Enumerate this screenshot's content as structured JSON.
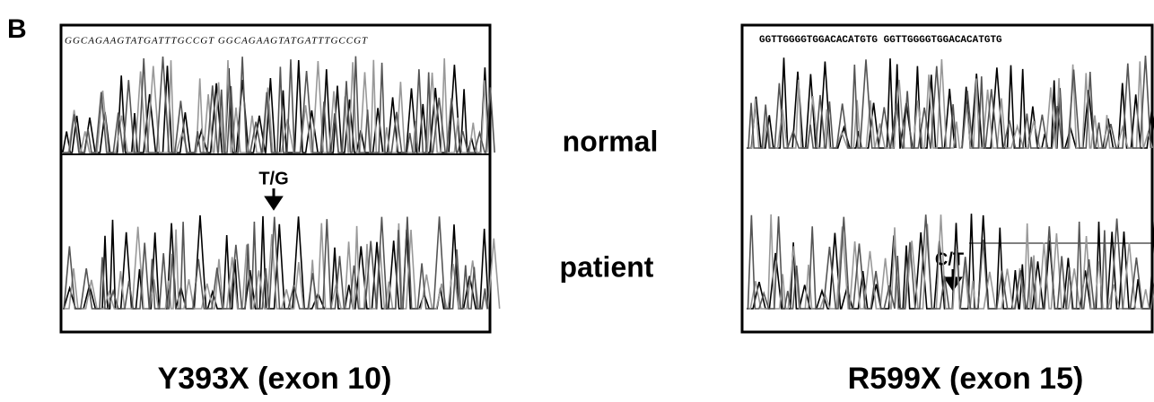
{
  "panel_label": "B",
  "left": {
    "sequence_top": "GGCAGAAGTATGATTTGCCGT GGCAGAAGTATGATTTGCCGT",
    "mutation": "T/G",
    "caption": "Y393X (exon 10)"
  },
  "right": {
    "sequence_top": "GGTTGGGGTGGACACATGTG GGTTGGGGTGGACACATGTG",
    "mutation": "C/T",
    "caption": "R599X (exon 15)"
  },
  "row_labels": [
    "normal",
    "patient"
  ]
}
